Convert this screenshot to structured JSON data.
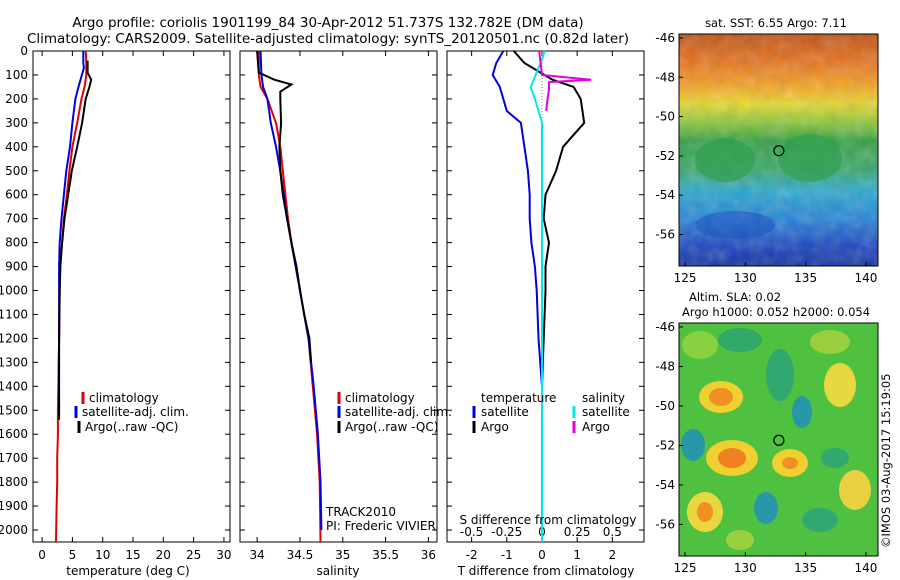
{
  "header": {
    "title_line1": "Argo profile: coriolis 1901199_84 30-Apr-2012 51.737S 132.782E (DM data)",
    "title_line2": "Climatology: CARS2009. Satellite-adjusted climatology: synTS_20120501.nc (0.82d later)"
  },
  "colors": {
    "climatology": "#e00000",
    "satellite": "#0000e0",
    "argo": "#000000",
    "sal_satellite": "#00e8e8",
    "sal_argo": "#e000e0"
  },
  "chart_data": [
    {
      "type": "line",
      "id": "temperature",
      "xlabel": "temperature (deg C)",
      "ylabel": "",
      "xlim": [
        -1.5,
        31
      ],
      "ylim": [
        2050,
        0
      ],
      "xticks": [
        0,
        5,
        10,
        15,
        20,
        25,
        30
      ],
      "yticks": [
        0,
        100,
        200,
        300,
        400,
        500,
        600,
        700,
        800,
        900,
        1000,
        1100,
        1200,
        1300,
        1400,
        1500,
        1600,
        1700,
        1800,
        1900,
        2000
      ],
      "legend": [
        "climatology",
        "satellite-adj. clim.",
        "Argo(..raw -QC)"
      ],
      "series": [
        {
          "name": "climatology",
          "color": "#e00000",
          "x": [
            7.2,
            7.3,
            7.3,
            7.0,
            6.5,
            5.8,
            5.0,
            4.5,
            4.1,
            3.6,
            3.3,
            3.0,
            2.9,
            2.8,
            2.7,
            2.6,
            2.6,
            2.5,
            2.5,
            2.4,
            2.3
          ],
          "y": [
            0,
            50,
            100,
            150,
            200,
            300,
            400,
            500,
            600,
            700,
            800,
            900,
            1000,
            1200,
            1400,
            1500,
            1600,
            1700,
            1800,
            1900,
            2050
          ]
        },
        {
          "name": "satellite-adj. clim.",
          "color": "#0000e0",
          "x": [
            6.8,
            6.8,
            6.9,
            6.0,
            5.5,
            5.0,
            4.6,
            4.0,
            3.6,
            3.2,
            2.9,
            2.8,
            2.8,
            2.8,
            2.7,
            2.7
          ],
          "y": [
            0,
            50,
            70,
            150,
            200,
            300,
            400,
            500,
            600,
            700,
            800,
            900,
            1000,
            1200,
            1400,
            1460
          ]
        },
        {
          "name": "Argo(..raw -QC)",
          "color": "#000000",
          "x": [
            7.5,
            7.5,
            8.1,
            7.8,
            7.2,
            6.6,
            5.8,
            4.9,
            4.3,
            3.7,
            3.3,
            3.0,
            2.9,
            2.8,
            2.8,
            2.8
          ],
          "y": [
            40,
            90,
            120,
            150,
            200,
            300,
            400,
            500,
            600,
            700,
            800,
            900,
            1000,
            1200,
            1400,
            1540
          ]
        }
      ]
    },
    {
      "type": "line",
      "id": "salinity",
      "xlabel": "salinity",
      "xlim": [
        33.8,
        36.1
      ],
      "ylim": [
        2050,
        0
      ],
      "xticks": [
        34,
        34.5,
        35,
        35.5,
        36
      ],
      "legend": [
        "climatology",
        "satellite-adj. clim.",
        "Argo(..raw -QC)"
      ],
      "annotations": [
        "TRACK2010",
        "PI: Frederic VIVIER"
      ],
      "series": [
        {
          "name": "climatology",
          "color": "#e00000",
          "x": [
            34.02,
            34.02,
            34.04,
            34.12,
            34.22,
            34.27,
            34.3,
            34.33,
            34.36,
            34.4,
            34.45,
            34.5,
            34.55,
            34.6,
            34.65,
            34.7,
            34.73,
            34.74
          ],
          "y": [
            0,
            100,
            150,
            200,
            300,
            400,
            500,
            600,
            700,
            800,
            900,
            1000,
            1100,
            1200,
            1400,
            1600,
            1800,
            2050
          ]
        },
        {
          "name": "satellite-adj. clim.",
          "color": "#0000e0",
          "x": [
            34.04,
            34.05,
            34.07,
            34.12,
            34.16,
            34.22,
            34.27,
            34.31,
            34.35,
            34.4,
            34.45,
            34.5,
            34.55,
            34.6,
            34.66,
            34.71,
            34.74,
            34.75
          ],
          "y": [
            0,
            100,
            150,
            200,
            300,
            400,
            500,
            600,
            700,
            800,
            900,
            1000,
            1100,
            1200,
            1400,
            1600,
            1800,
            2000
          ]
        },
        {
          "name": "Argo(..raw -QC)",
          "color": "#000000",
          "x": [
            34.0,
            34.02,
            34.2,
            34.4,
            34.27,
            34.27,
            34.28,
            34.26,
            34.27,
            34.3,
            34.35,
            34.4,
            34.46,
            34.5,
            34.55,
            34.61,
            34.63
          ],
          "y": [
            0,
            90,
            120,
            140,
            170,
            200,
            300,
            400,
            500,
            600,
            700,
            800,
            900,
            1000,
            1100,
            1200,
            1300
          ]
        }
      ]
    },
    {
      "type": "line",
      "id": "differences",
      "xlabel": "T difference from climatology",
      "xlabel_top": "S difference from climatology",
      "xlim": [
        -2.7,
        2.9
      ],
      "ylim": [
        2050,
        0
      ],
      "xticks": [
        -2,
        -1,
        0,
        1,
        2
      ],
      "xticks_top": [
        "-0.5",
        "-0.25",
        "0",
        "0.25",
        "0.5"
      ],
      "legend": [
        "temperature",
        "satellite",
        "Argo",
        "salinity",
        "satellite",
        "Argo"
      ],
      "series": [
        {
          "name": "temperature satellite",
          "color": "#0000e0",
          "x": [
            -1.1,
            -1.3,
            -1.4,
            -1.2,
            -1.0,
            -0.6,
            -0.5,
            -0.4,
            -0.35,
            -0.35,
            -0.3,
            -0.2,
            -0.15,
            -0.1,
            0,
            0,
            0
          ],
          "y": [
            0,
            50,
            100,
            150,
            250,
            300,
            400,
            500,
            600,
            700,
            800,
            900,
            1000,
            1200,
            1400,
            1600,
            2050
          ]
        },
        {
          "name": "temperature Argo",
          "color": "#000000",
          "x": [
            -0.8,
            -0.5,
            0.3,
            0.9,
            1.1,
            1.2,
            0.6,
            0.4,
            0.1,
            0.05,
            0.2,
            0.1,
            0.1,
            0.05,
            0.0,
            0.0
          ],
          "y": [
            0,
            50,
            120,
            150,
            200,
            300,
            400,
            500,
            600,
            700,
            800,
            900,
            1000,
            1200,
            1400,
            1540
          ]
        },
        {
          "name": "salinity satellite",
          "color": "#00e8e8",
          "x": [
            0.02,
            -0.01,
            -0.08,
            -0.05,
            0.0,
            0.0,
            0.0,
            0.0,
            0.0,
            0.0,
            0.0
          ],
          "y": [
            0,
            50,
            150,
            200,
            300,
            500,
            800,
            1000,
            1400,
            1800,
            2050
          ]
        },
        {
          "name": "salinity Argo",
          "color": "#e000e0",
          "x": [
            -0.02,
            0.0,
            0.35,
            0.05,
            0.05,
            0.04,
            0.03
          ],
          "y": [
            0,
            100,
            120,
            130,
            160,
            200,
            250
          ]
        }
      ]
    },
    {
      "type": "heatmap",
      "id": "sst-map",
      "title": "sat. SST: 6.55 Argo: 7.11",
      "xlim": [
        124.5,
        141
      ],
      "ylim": [
        -57.6,
        -45.8
      ],
      "xticks": [
        125,
        130,
        135,
        140
      ],
      "yticks": [
        -46,
        -48,
        -50,
        -52,
        -54,
        -56
      ],
      "marker": {
        "lon": 132.782,
        "lat": -51.737
      }
    },
    {
      "type": "heatmap",
      "id": "sla-map",
      "title_line1": "Altim. SLA: 0.02",
      "title_line2": "Argo h1000: 0.052 h2000: 0.054",
      "xlim": [
        124.5,
        141
      ],
      "ylim": [
        -57.6,
        -45.8
      ],
      "xticks": [
        125,
        130,
        135,
        140
      ],
      "yticks": [
        -46,
        -48,
        -50,
        -52,
        -54,
        -56
      ],
      "marker": {
        "lon": 132.782,
        "lat": -51.737
      }
    }
  ],
  "credit": "©IMOS 03-Aug-2017 15:19:05"
}
